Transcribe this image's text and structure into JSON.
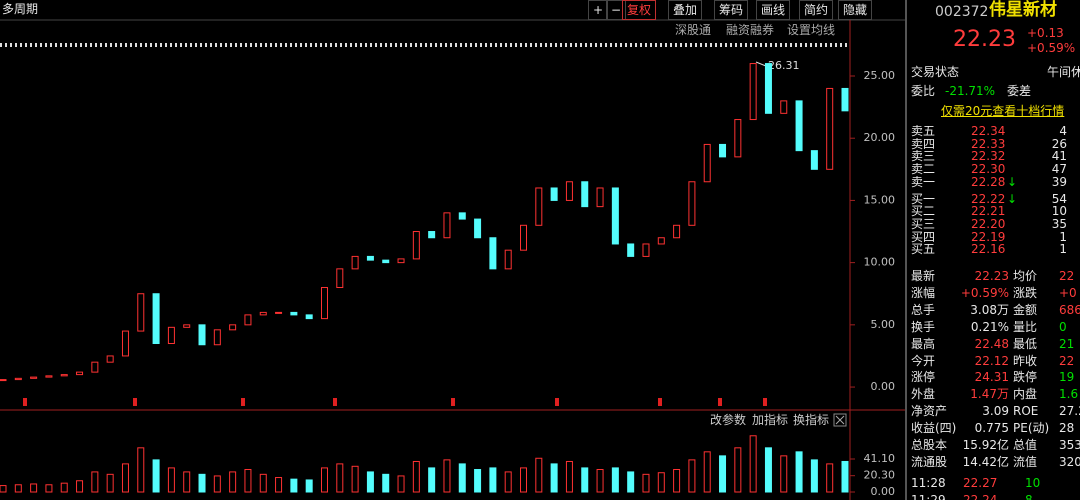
{
  "toolbar": {
    "period": "多周期",
    "zoom": [
      "+",
      "−"
    ],
    "buttons": [
      "复权",
      "叠加",
      "筹码",
      "画线",
      "简约",
      "隐藏"
    ]
  },
  "chart_tabs": [
    "深股通",
    "融资融券",
    "设置均线"
  ],
  "indicator_tabs": [
    "改参数",
    "加指标",
    "换指标"
  ],
  "chart_data": [
    {
      "type": "candlestick",
      "annotation": "26.31",
      "ylim": [
        -0.88,
        27.25
      ],
      "yticks": [
        {
          "value": 0,
          "label": "0.00"
        },
        {
          "value": 5,
          "label": "5.00"
        },
        {
          "value": 10,
          "label": "10.00"
        },
        {
          "value": 15,
          "label": "15.00"
        },
        {
          "value": 20,
          "label": "20.00"
        },
        {
          "value": 25,
          "label": "25.00"
        }
      ],
      "close": [
        0.6,
        0.7,
        0.8,
        0.9,
        1.0,
        1.2,
        2.0,
        2.5,
        4.5,
        7.5,
        3.5,
        4.8,
        5.0,
        3.4,
        4.6,
        5.0,
        5.8,
        6.0,
        6.0,
        5.8,
        5.5,
        8.0,
        9.5,
        10.5,
        10.2,
        10.0,
        10.3,
        12.5,
        12.0,
        14.0,
        13.5,
        12.0,
        9.5,
        11.0,
        13.0,
        16.0,
        15.0,
        16.5,
        14.5,
        16.0,
        11.5,
        10.5,
        11.5,
        12.0,
        13.0,
        16.5,
        19.5,
        18.5,
        21.5,
        26.0,
        22.0,
        23.0,
        19.0,
        17.5,
        24.0,
        22.2
      ]
    },
    {
      "type": "bar",
      "ylim": [
        0,
        74.7
      ],
      "yticks": [
        {
          "value": 0,
          "label": "0.00"
        },
        {
          "value": 20.3,
          "label": "20.30"
        },
        {
          "value": 41.1,
          "label": "41.10"
        }
      ],
      "values": [
        8,
        9,
        10,
        9,
        11,
        14,
        25,
        22,
        35,
        55,
        40,
        30,
        25,
        22,
        20,
        25,
        28,
        22,
        18,
        16,
        15,
        30,
        35,
        32,
        25,
        22,
        20,
        38,
        30,
        40,
        35,
        28,
        30,
        25,
        30,
        42,
        35,
        38,
        30,
        28,
        30,
        25,
        22,
        24,
        28,
        40,
        50,
        45,
        55,
        70,
        55,
        45,
        50,
        40,
        35,
        38
      ]
    }
  ],
  "quote": {
    "code": "002372",
    "name": "伟星新材",
    "price": "22.23",
    "change": "+0.13",
    "change_pct": "+0.59%",
    "status_label": "交易状态",
    "status": "午间休",
    "ratio_label": "委比",
    "ratio": "-21.71%",
    "diff_label": "委差",
    "promo": "仅需20元查看十档行情",
    "asks": [
      [
        "卖五",
        "22.34",
        "4"
      ],
      [
        "卖四",
        "22.33",
        "26"
      ],
      [
        "卖三",
        "22.32",
        "41"
      ],
      [
        "卖二",
        "22.30",
        "47"
      ],
      [
        "卖一",
        "22.28",
        "39",
        "↓"
      ]
    ],
    "bids": [
      [
        "买一",
        "22.22",
        "54",
        "↓"
      ],
      [
        "买二",
        "22.21",
        "10"
      ],
      [
        "买三",
        "22.20",
        "35"
      ],
      [
        "买四",
        "22.19",
        "1"
      ],
      [
        "买五",
        "22.16",
        "1"
      ]
    ],
    "stats": [
      [
        "最新",
        "22.23",
        "均价",
        "22"
      ],
      [
        "涨幅",
        "+0.59%",
        "涨跌",
        "+0"
      ],
      [
        "总手",
        "3.08万",
        "金额",
        "6860"
      ],
      [
        "换手",
        "0.21%",
        "量比",
        "0"
      ],
      [
        "最高",
        "22.48",
        "最低",
        "21"
      ],
      [
        "今开",
        "22.12",
        "昨收",
        "22"
      ],
      [
        "涨停",
        "24.31",
        "跌停",
        "19"
      ],
      [
        "外盘",
        "1.47万",
        "内盘",
        "1.6"
      ],
      [
        "净资产",
        "3.09",
        "ROE",
        "27.2"
      ],
      [
        "收益(四)",
        "0.775",
        "PE(动)",
        "28"
      ],
      [
        "总股本",
        "15.92亿",
        "总值",
        "353.9"
      ],
      [
        "流通股",
        "14.42亿",
        "流值",
        "320.0"
      ]
    ],
    "ticks": [
      [
        "11:28",
        "22.27",
        "10"
      ],
      [
        "11:29",
        "22.24",
        "8"
      ]
    ]
  }
}
